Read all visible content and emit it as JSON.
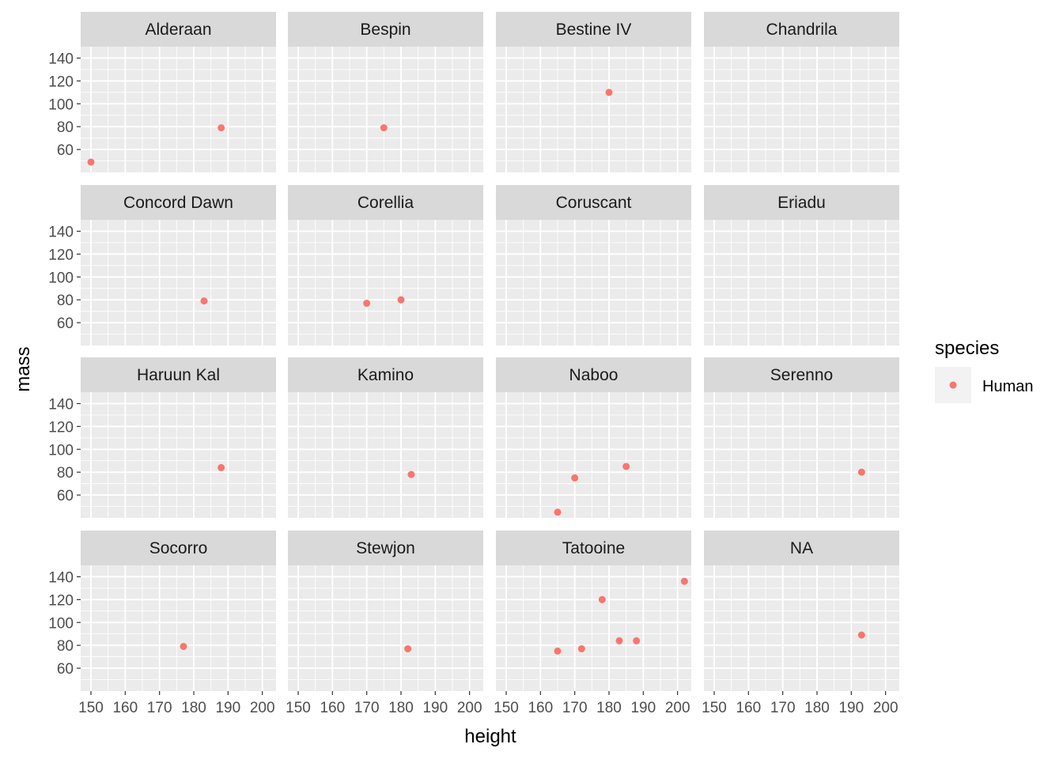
{
  "chart_data": {
    "type": "scatter",
    "facet_by": "homeworld",
    "xlabel": "height",
    "ylabel": "mass",
    "xlim": [
      147,
      204
    ],
    "ylim": [
      40,
      150
    ],
    "x_ticks": [
      150,
      160,
      170,
      180,
      190,
      200
    ],
    "y_ticks": [
      60,
      80,
      100,
      120,
      140
    ],
    "legend": {
      "title": "species",
      "placement": "right",
      "entries": [
        {
          "label": "Human",
          "color": "#F8766D"
        }
      ]
    },
    "colors": {
      "panel_bg": "#EBEBEB",
      "strip_bg": "#D9D9D9",
      "grid": "#FFFFFF",
      "point": "#F8766D",
      "axis_text": "#4D4D4D",
      "title_text": "#000000"
    },
    "facets": [
      {
        "label": "Alderaan",
        "points": [
          {
            "x": 150,
            "y": 49
          },
          {
            "x": 188,
            "y": 79
          }
        ]
      },
      {
        "label": "Bespin",
        "points": [
          {
            "x": 175,
            "y": 79
          }
        ]
      },
      {
        "label": "Bestine IV",
        "points": [
          {
            "x": 180,
            "y": 110
          }
        ]
      },
      {
        "label": "Chandrila",
        "points": []
      },
      {
        "label": "Concord Dawn",
        "points": [
          {
            "x": 183,
            "y": 79
          }
        ]
      },
      {
        "label": "Corellia",
        "points": [
          {
            "x": 170,
            "y": 77
          },
          {
            "x": 180,
            "y": 80
          }
        ]
      },
      {
        "label": "Coruscant",
        "points": []
      },
      {
        "label": "Eriadu",
        "points": []
      },
      {
        "label": "Haruun Kal",
        "points": [
          {
            "x": 188,
            "y": 84
          }
        ]
      },
      {
        "label": "Kamino",
        "points": [
          {
            "x": 183,
            "y": 78
          }
        ]
      },
      {
        "label": "Naboo",
        "points": [
          {
            "x": 165,
            "y": 45
          },
          {
            "x": 170,
            "y": 75
          },
          {
            "x": 185,
            "y": 85
          }
        ]
      },
      {
        "label": "Serenno",
        "points": [
          {
            "x": 193,
            "y": 80
          }
        ]
      },
      {
        "label": "Socorro",
        "points": [
          {
            "x": 177,
            "y": 79
          }
        ]
      },
      {
        "label": "Stewjon",
        "points": [
          {
            "x": 182,
            "y": 77
          }
        ]
      },
      {
        "label": "Tatooine",
        "points": [
          {
            "x": 165,
            "y": 75
          },
          {
            "x": 172,
            "y": 77
          },
          {
            "x": 178,
            "y": 120
          },
          {
            "x": 183,
            "y": 84
          },
          {
            "x": 188,
            "y": 84
          },
          {
            "x": 202,
            "y": 136
          }
        ]
      },
      {
        "label": "NA",
        "points": [
          {
            "x": 193,
            "y": 89
          }
        ]
      }
    ]
  }
}
